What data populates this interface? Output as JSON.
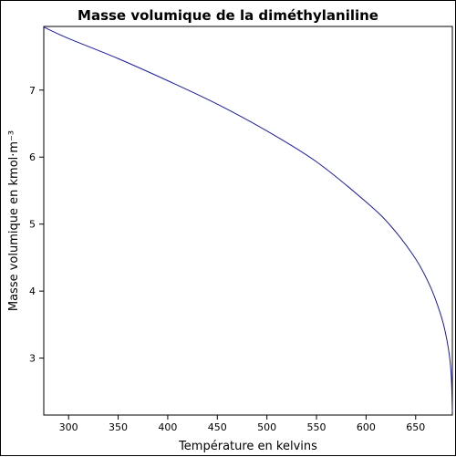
{
  "chart_data": {
    "type": "line",
    "title": "Masse volumique de la diméthylaniline",
    "xlabel": "Température en kelvins",
    "ylabel": "Masse volumique en kmol·m⁻³",
    "xlim": [
      275,
      687
    ],
    "ylim": [
      2.15,
      7.95
    ],
    "xticks": [
      300,
      350,
      400,
      450,
      500,
      550,
      600,
      650
    ],
    "yticks": [
      3,
      4,
      5,
      6,
      7
    ],
    "grid": false,
    "series": [
      {
        "color": "#1a1aa6",
        "x": [
          275,
          300,
          350,
          400,
          450,
          500,
          550,
          600,
          625,
          650,
          665,
          675,
          680,
          684,
          686,
          687
        ],
        "y": [
          7.94,
          7.77,
          7.47,
          7.14,
          6.79,
          6.39,
          5.93,
          5.33,
          4.97,
          4.48,
          4.06,
          3.66,
          3.38,
          3.04,
          2.71,
          2.2
        ]
      }
    ]
  }
}
